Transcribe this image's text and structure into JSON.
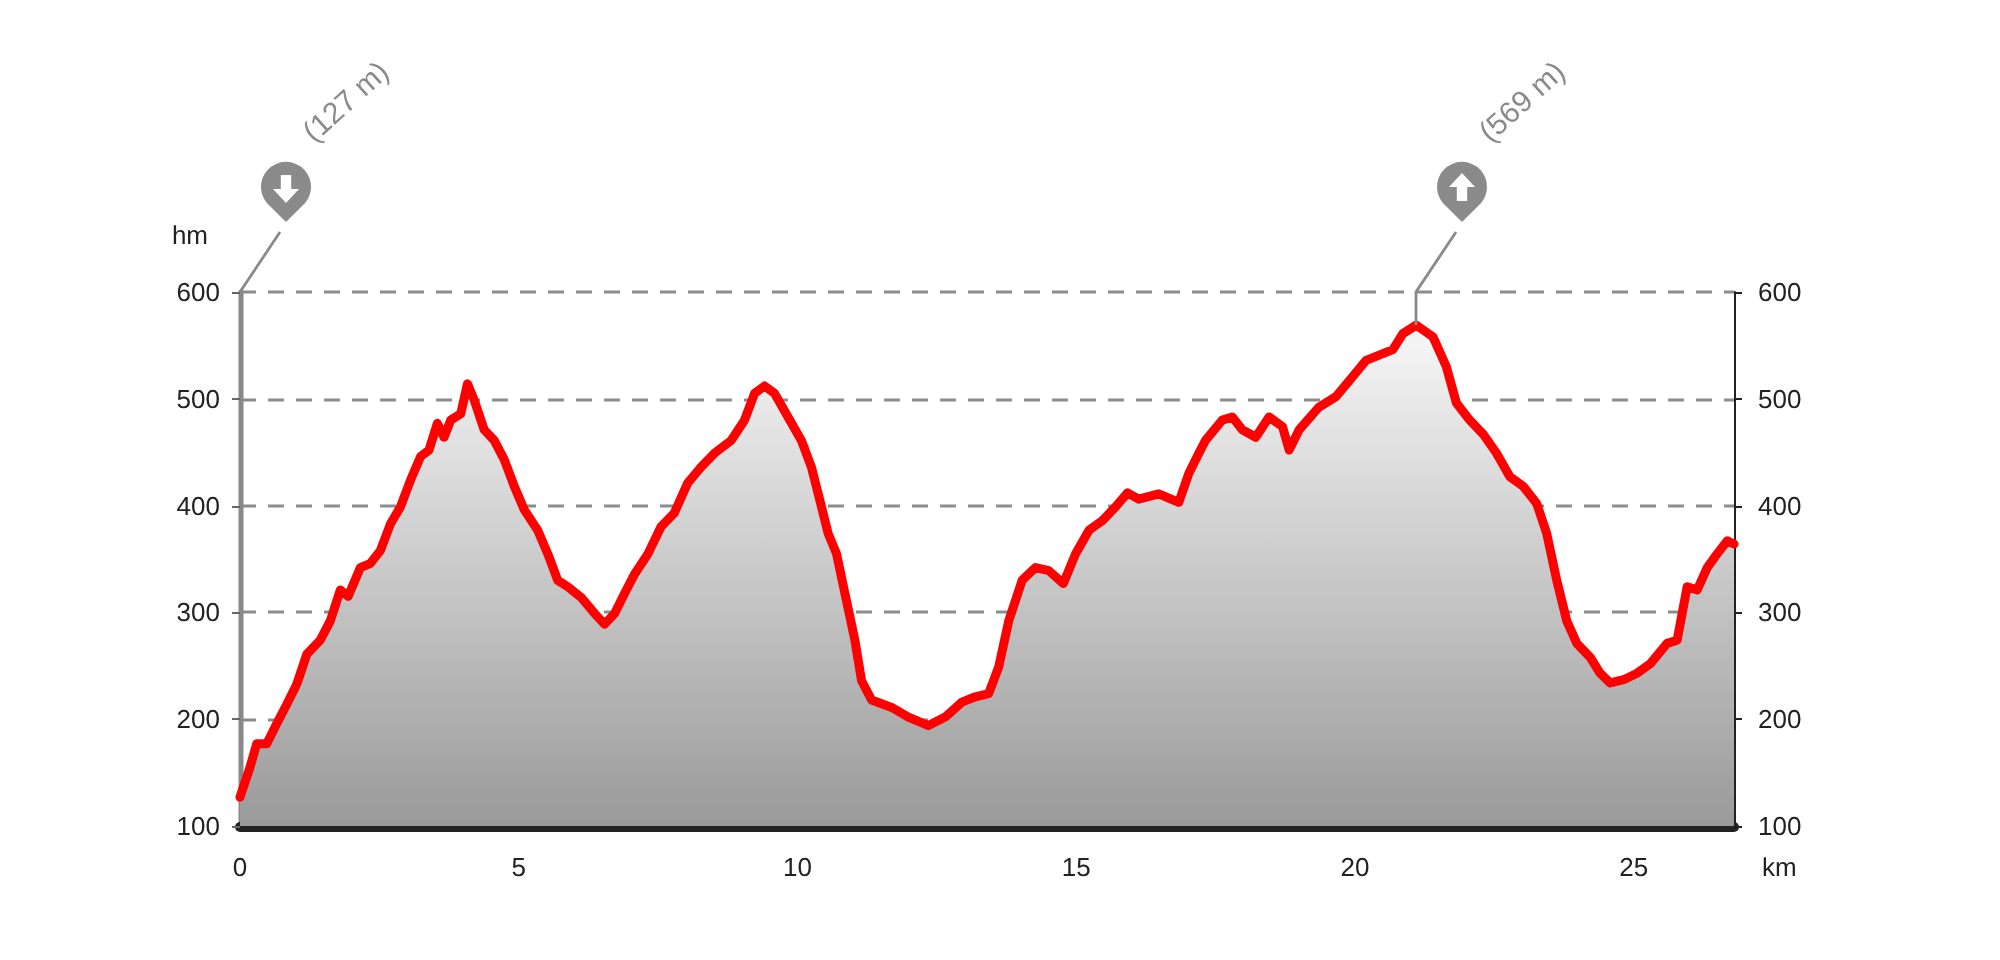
{
  "chart_data": {
    "type": "area",
    "xlabel": "km",
    "ylabel": "hm",
    "annotations": [
      "(127 m)",
      "(569 m)"
    ],
    "x": [
      0,
      0.18,
      0.3,
      0.48,
      0.66,
      0.84,
      1.02,
      1.2,
      1.44,
      1.62,
      1.8,
      1.94,
      2.16,
      2.34,
      2.52,
      2.7,
      2.88,
      3.06,
      3.24,
      3.39,
      3.54,
      3.66,
      3.78,
      3.96,
      4.08,
      4.2,
      4.38,
      4.56,
      4.74,
      4.92,
      5.1,
      5.34,
      5.52,
      5.7,
      5.88,
      6.12,
      6.36,
      6.54,
      6.72,
      6.9,
      7.08,
      7.32,
      7.55,
      7.79,
      8.03,
      8.27,
      8.51,
      8.81,
      9.05,
      9.23,
      9.41,
      9.59,
      9.83,
      10.07,
      10.25,
      10.43,
      10.55,
      10.7,
      10.85,
      11.03,
      11.15,
      11.33,
      11.69,
      11.99,
      12.35,
      12.65,
      12.95,
      13.19,
      13.43,
      13.61,
      13.79,
      14.03,
      14.27,
      14.51,
      14.77,
      14.99,
      15.23,
      15.47,
      15.71,
      15.92,
      16.12,
      16.48,
      16.84,
      17.02,
      17.2,
      17.32,
      17.62,
      17.8,
      17.98,
      18.22,
      18.46,
      18.7,
      18.82,
      19.0,
      19.35,
      19.66,
      19.9,
      20.2,
      20.68,
      20.86,
      21.1,
      21.4,
      21.64,
      21.82,
      22.06,
      22.3,
      22.54,
      22.78,
      23.02,
      23.26,
      23.44,
      23.62,
      23.8,
      23.98,
      24.22,
      24.4,
      24.58,
      24.82,
      25.06,
      25.3,
      25.6,
      25.78,
      25.96,
      26.14,
      26.32,
      26.5,
      26.68,
      26.8
    ],
    "series": [
      {
        "color": "#ff0000",
        "values": [
          127,
          155,
          177,
          177,
          196,
          214,
          233,
          261,
          274,
          292,
          321,
          315,
          342,
          346,
          358,
          383,
          399,
          424,
          446,
          452,
          477,
          464,
          480,
          486,
          514,
          499,
          471,
          461,
          443,
          418,
          396,
          377,
          355,
          330,
          324,
          314,
          299,
          289,
          299,
          318,
          336,
          355,
          380,
          393,
          421,
          436,
          449,
          461,
          480,
          505,
          512,
          505,
          483,
          461,
          436,
          399,
          374,
          355,
          318,
          274,
          236,
          218,
          211,
          202,
          194,
          202,
          216,
          221,
          224,
          249,
          292,
          330,
          342,
          339,
          327,
          355,
          377,
          386,
          399,
          412,
          406,
          411,
          403,
          430,
          449,
          461,
          480,
          483,
          471,
          464,
          483,
          474,
          452,
          471,
          492,
          502,
          517,
          536,
          546,
          561,
          569,
          558,
          530,
          496,
          480,
          467,
          449,
          427,
          418,
          402,
          374,
          330,
          292,
          271,
          258,
          243,
          234,
          237,
          243,
          252,
          271,
          274,
          324,
          321,
          342,
          355,
          367,
          364
        ]
      }
    ],
    "xlim": [
      0,
      26.8
    ],
    "xticks": [
      0,
      5,
      10,
      15,
      20,
      25
    ],
    "ylim": [
      100,
      600
    ],
    "yticks": [
      100,
      200,
      300,
      400,
      500,
      600
    ],
    "y2lim": [
      100,
      600
    ],
    "y2ticks": [
      100,
      200,
      300,
      400,
      500,
      600
    ],
    "grid": "y",
    "marker": "none",
    "line_style": "solid"
  }
}
